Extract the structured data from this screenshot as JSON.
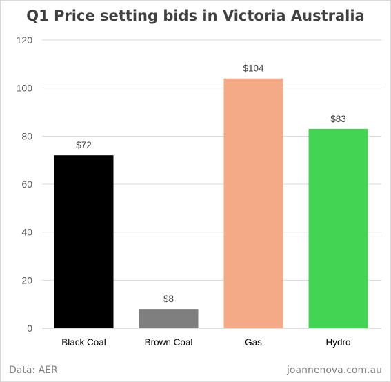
{
  "chart_data": {
    "type": "bar",
    "title": "Q1 Price setting bids in Victoria Australia",
    "categories": [
      "Black Coal",
      "Brown Coal",
      "Gas",
      "Hydro"
    ],
    "values": [
      72,
      8,
      104,
      83
    ],
    "data_labels": [
      "$72",
      "$8",
      "$104",
      "$83"
    ],
    "bar_colors": [
      "#000000",
      "#7f7f7f",
      "#f4aa86",
      "#44d454"
    ],
    "xlabel": "",
    "ylabel": "",
    "ylim": [
      0,
      120
    ],
    "yticks": [
      0,
      20,
      40,
      60,
      80,
      100,
      120
    ],
    "grid": true,
    "legend": "none"
  },
  "footer": {
    "source": "Data: AER",
    "credit": "joannenova.com.au"
  },
  "colors": {
    "gridline": "#d9d9d9",
    "axis": "#bfbfbf",
    "title": "#404040",
    "footer": "#7f7f7f"
  }
}
